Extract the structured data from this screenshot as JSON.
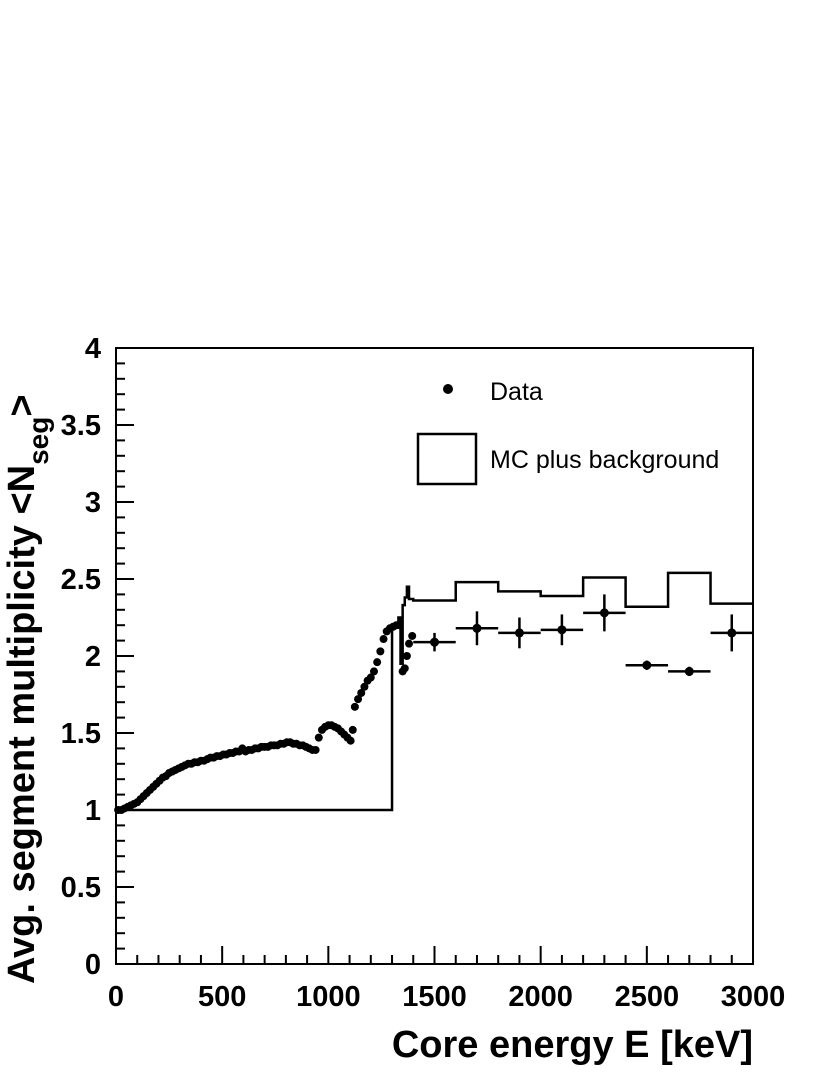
{
  "chart_data": {
    "type": "scatter",
    "xlabel": "Core energy E [keV]",
    "ylabel_main": "Avg. segment multiplicity <N",
    "ylabel_sub": "seg",
    "ylabel_end": ">",
    "xlim": [
      0,
      3000
    ],
    "ylim": [
      0,
      4
    ],
    "x_ticks": [
      0,
      500,
      1000,
      1500,
      2000,
      2500,
      3000
    ],
    "x_tick_labels": [
      "0",
      "500",
      "1000",
      "1500",
      "2000",
      "2500",
      "3000"
    ],
    "y_ticks": [
      0,
      0.5,
      1,
      1.5,
      2,
      2.5,
      3,
      3.5,
      4
    ],
    "y_tick_labels": [
      "0",
      "0.5",
      "1",
      "1.5",
      "2",
      "2.5",
      "3",
      "3.5",
      "4"
    ],
    "grid": false,
    "legend_position": "top-right",
    "series": [
      {
        "name": "Data",
        "kind": "points-with-errors",
        "points": [
          [
            10,
            1.0
          ],
          [
            25,
            1.0
          ],
          [
            40,
            1.01
          ],
          [
            55,
            1.02
          ],
          [
            70,
            1.03
          ],
          [
            85,
            1.04
          ],
          [
            100,
            1.05
          ],
          [
            115,
            1.07
          ],
          [
            130,
            1.09
          ],
          [
            145,
            1.11
          ],
          [
            160,
            1.13
          ],
          [
            175,
            1.15
          ],
          [
            190,
            1.17
          ],
          [
            205,
            1.19
          ],
          [
            220,
            1.21
          ],
          [
            235,
            1.22
          ],
          [
            250,
            1.24
          ],
          [
            265,
            1.25
          ],
          [
            280,
            1.26
          ],
          [
            295,
            1.27
          ],
          [
            310,
            1.28
          ],
          [
            325,
            1.29
          ],
          [
            340,
            1.3
          ],
          [
            355,
            1.3
          ],
          [
            370,
            1.31
          ],
          [
            385,
            1.31
          ],
          [
            400,
            1.32
          ],
          [
            415,
            1.32
          ],
          [
            430,
            1.33
          ],
          [
            445,
            1.34
          ],
          [
            460,
            1.34
          ],
          [
            475,
            1.35
          ],
          [
            490,
            1.35
          ],
          [
            505,
            1.36
          ],
          [
            520,
            1.36
          ],
          [
            535,
            1.37
          ],
          [
            550,
            1.37
          ],
          [
            565,
            1.38
          ],
          [
            580,
            1.38
          ],
          [
            595,
            1.4
          ],
          [
            610,
            1.38
          ],
          [
            625,
            1.39
          ],
          [
            640,
            1.39
          ],
          [
            655,
            1.4
          ],
          [
            670,
            1.4
          ],
          [
            685,
            1.41
          ],
          [
            700,
            1.41
          ],
          [
            715,
            1.41
          ],
          [
            730,
            1.42
          ],
          [
            745,
            1.42
          ],
          [
            760,
            1.42
          ],
          [
            775,
            1.43
          ],
          [
            790,
            1.43
          ],
          [
            805,
            1.44
          ],
          [
            820,
            1.44
          ],
          [
            835,
            1.43
          ],
          [
            850,
            1.43
          ],
          [
            865,
            1.42
          ],
          [
            880,
            1.42
          ],
          [
            895,
            1.41
          ],
          [
            910,
            1.4
          ],
          [
            925,
            1.39
          ],
          [
            940,
            1.39
          ],
          [
            955,
            1.47
          ],
          [
            970,
            1.52
          ],
          [
            985,
            1.54
          ],
          [
            1000,
            1.55
          ],
          [
            1015,
            1.55
          ],
          [
            1030,
            1.54
          ],
          [
            1045,
            1.53
          ],
          [
            1060,
            1.51
          ],
          [
            1075,
            1.49
          ],
          [
            1090,
            1.47
          ],
          [
            1105,
            1.45
          ],
          [
            1115,
            1.52
          ],
          [
            1125,
            1.67
          ],
          [
            1140,
            1.72
          ],
          [
            1155,
            1.76
          ],
          [
            1170,
            1.8
          ],
          [
            1185,
            1.84
          ],
          [
            1200,
            1.86
          ],
          [
            1215,
            1.9
          ],
          [
            1230,
            1.96
          ],
          [
            1245,
            2.03
          ],
          [
            1260,
            2.11
          ],
          [
            1275,
            2.16
          ],
          [
            1290,
            2.18
          ],
          [
            1305,
            2.19
          ],
          [
            1320,
            2.2
          ],
          [
            1335,
            2.2
          ],
          [
            1350,
            1.9
          ],
          [
            1360,
            1.92
          ],
          [
            1370,
            2.0
          ],
          [
            1380,
            2.08
          ],
          [
            1395,
            2.13
          ]
        ],
        "binned_points": [
          {
            "x": 1500,
            "y": 2.09,
            "xerr": 100,
            "yerr": 0.06
          },
          {
            "x": 1700,
            "y": 2.18,
            "xerr": 100,
            "yerr": 0.11
          },
          {
            "x": 1900,
            "y": 2.15,
            "xerr": 100,
            "yerr": 0.1
          },
          {
            "x": 2100,
            "y": 2.17,
            "xerr": 100,
            "yerr": 0.1
          },
          {
            "x": 2300,
            "y": 2.28,
            "xerr": 100,
            "yerr": 0.12
          },
          {
            "x": 2500,
            "y": 1.94,
            "xerr": 100,
            "yerr": 0.03
          },
          {
            "x": 2700,
            "y": 1.9,
            "xerr": 100,
            "yerr": 0.03
          },
          {
            "x": 2900,
            "y": 2.15,
            "xerr": 100,
            "yerr": 0.12
          }
        ]
      },
      {
        "name": "MC plus background",
        "kind": "step-histogram",
        "low_energy_bins": [
          [
            0,
            1.0
          ],
          [
            1300,
            2.2
          ],
          [
            1330,
            2.25
          ],
          [
            1340,
            1.95
          ],
          [
            1350,
            2.33
          ],
          [
            1360,
            2.38
          ],
          [
            1370,
            2.45
          ],
          [
            1380,
            2.37
          ]
        ],
        "bins": [
          {
            "x0": 1400,
            "x1": 1600,
            "y": 2.36
          },
          {
            "x0": 1600,
            "x1": 1800,
            "y": 2.48
          },
          {
            "x0": 1800,
            "x1": 2000,
            "y": 2.42
          },
          {
            "x0": 2000,
            "x1": 2200,
            "y": 2.39
          },
          {
            "x0": 2200,
            "x1": 2400,
            "y": 2.51
          },
          {
            "x0": 2400,
            "x1": 2600,
            "y": 2.32
          },
          {
            "x0": 2600,
            "x1": 2800,
            "y": 2.54
          },
          {
            "x0": 2800,
            "x1": 3000,
            "y": 2.34
          }
        ]
      }
    ]
  }
}
